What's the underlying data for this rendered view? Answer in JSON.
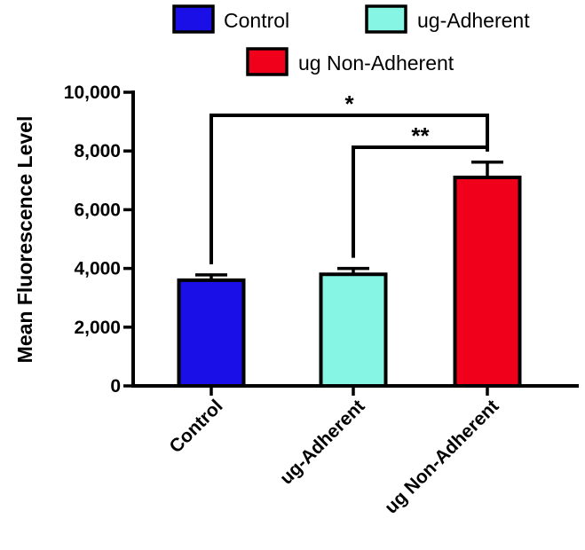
{
  "chart_data": {
    "type": "bar",
    "title": "",
    "xlabel": "",
    "ylabel": "Mean Fluorescence Level",
    "categories": [
      "Control",
      "ug-Adherent",
      "ug Non-Adherent"
    ],
    "values": [
      3600,
      3800,
      7100
    ],
    "errors": [
      180,
      200,
      520
    ],
    "colors": [
      "#1a0fe6",
      "#86f5e3",
      "#f0001a"
    ],
    "ylim": [
      0,
      10000
    ],
    "yticks": [
      0,
      2000,
      4000,
      6000,
      8000,
      10000
    ],
    "ytick_labels": [
      "0",
      "2,000",
      "4,000",
      "6,000",
      "8,000",
      "10,000"
    ],
    "grid": false,
    "legend": {
      "placement": "top",
      "entries": [
        {
          "label": "Control",
          "color": "#1a0fe6"
        },
        {
          "label": "ug-Adherent",
          "color": "#86f5e3"
        },
        {
          "label": "ug Non-Adherent",
          "color": "#f0001a"
        }
      ]
    },
    "annotations": [
      {
        "from": 0,
        "to": 2,
        "label": "*"
      },
      {
        "from": 1,
        "to": 2,
        "label": "**"
      }
    ]
  }
}
